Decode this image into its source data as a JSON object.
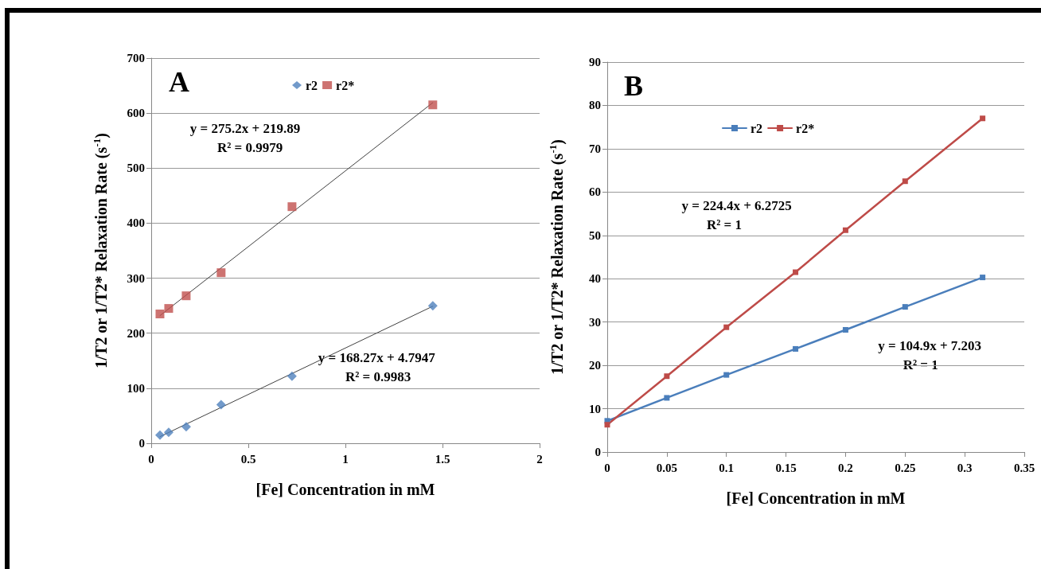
{
  "chart_data": [
    {
      "type": "scatter",
      "title": "A",
      "xlabel": "[Fe] Concentration in mM",
      "ylabel": "1/T2 or 1/T2* Relaxation Rate (s$^{-1}$)",
      "xlim": [
        0,
        2
      ],
      "xticks": [
        0,
        0.5,
        1,
        1.5,
        2
      ],
      "ylim": [
        0,
        700
      ],
      "yticks": [
        0,
        100,
        200,
        300,
        400,
        500,
        600,
        700
      ],
      "grid": "y",
      "legend": "top",
      "series": [
        {
          "name": "r2",
          "color": "#4f81bd",
          "marker": "diamond",
          "x": [
            0.045,
            0.09,
            0.18,
            0.36,
            0.725,
            1.45
          ],
          "values": [
            15,
            20,
            30,
            70,
            122,
            250
          ]
        },
        {
          "name": "r2*",
          "color": "#c0504d",
          "marker": "square",
          "x": [
            0.045,
            0.09,
            0.18,
            0.36,
            0.725,
            1.45
          ],
          "values": [
            235,
            245,
            268,
            310,
            430,
            615
          ]
        },
        {
          "type": "line",
          "color": "#404040",
          "marker": "none",
          "x": [
            0.045,
            1.45
          ],
          "values": [
            12,
            249
          ]
        },
        {
          "type": "line",
          "color": "#404040",
          "marker": "none",
          "x": [
            0.045,
            1.45
          ],
          "values": [
            232,
            619
          ]
        }
      ],
      "annotations": [
        "y = 275.2x + 219.89",
        "R² = 0.9979",
        "y = 168.27x + 4.7947",
        "R² = 0.9983"
      ]
    },
    {
      "type": "line",
      "title": "B",
      "xlabel": "[Fe] Concentration in mM",
      "ylabel": "1/T2 or 1/T2* Relaxation Rate (s$^{-1}$)",
      "xlim": [
        0,
        0.35
      ],
      "xticks": [
        0,
        0.05,
        0.1,
        0.15,
        0.2,
        0.25,
        0.3,
        0.35
      ],
      "ylim": [
        0,
        90
      ],
      "yticks": [
        0,
        10,
        20,
        30,
        40,
        50,
        60,
        70,
        80,
        90
      ],
      "grid": "y",
      "legend": "top",
      "marker": "square",
      "series": [
        {
          "name": "r2",
          "color": "#4a7ebb",
          "x": [
            0,
            0.05,
            0.1,
            0.158,
            0.2,
            0.25,
            0.315
          ],
          "values": [
            7.2,
            12.5,
            17.8,
            23.8,
            28.2,
            33.5,
            40.3
          ]
        },
        {
          "name": "r2*",
          "color": "#be4b48",
          "x": [
            0,
            0.05,
            0.1,
            0.158,
            0.2,
            0.25,
            0.315
          ],
          "values": [
            6.3,
            17.5,
            28.8,
            41.5,
            51.2,
            62.5,
            77
          ]
        }
      ],
      "annotations": [
        "y = 224.4x + 6.2725",
        "R² = 1",
        "y = 104.9x + 7.203",
        "R² = 1"
      ]
    }
  ]
}
